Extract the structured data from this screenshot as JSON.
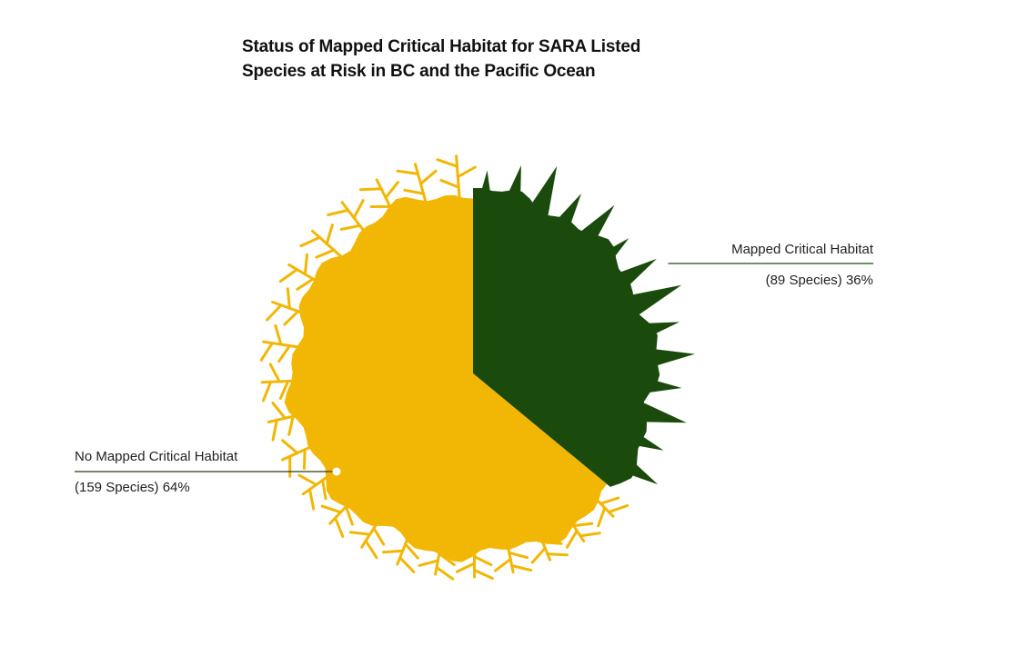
{
  "chart_data": {
    "type": "pie",
    "title_lines": [
      "Status of Mapped Critical Habitat for SARA Listed",
      "Species at Risk in BC and the Pacific Ocean"
    ],
    "slices": [
      {
        "label": "Mapped Critical Habitat",
        "detail": "(89 Species) 36%",
        "species": 89,
        "percent": 36,
        "color": "#1a4a0c",
        "decoration": "conifer-trees"
      },
      {
        "label": "No Mapped Critical Habitat",
        "detail": "(159 Species) 64%",
        "species": 159,
        "percent": 64,
        "color": "#f2b705",
        "decoration": "coral-branches"
      }
    ],
    "start_angle_degrees": 0,
    "direction": "clockwise"
  }
}
